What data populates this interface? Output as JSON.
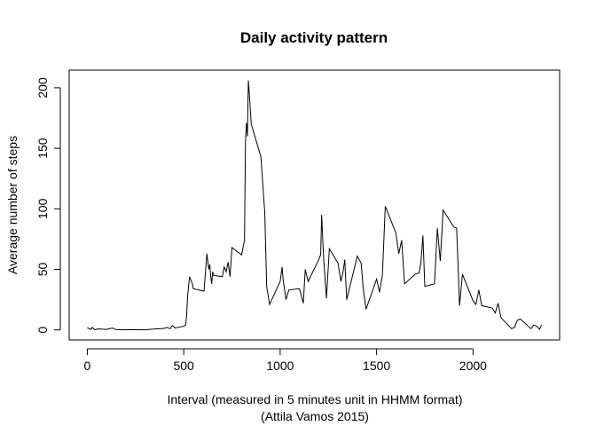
{
  "chart_data": {
    "type": "line",
    "title": "Daily activity pattern",
    "xlabel": "Interval (measured in 5 minutes unit in HHMM format)",
    "xlabel_sub": "(Attila Vamos 2015)",
    "ylabel": "Average number of steps",
    "xlim": [
      -94,
      2449
    ],
    "ylim": [
      -8.3,
      214.6
    ],
    "x_ticks": [
      0,
      500,
      1000,
      1500,
      2000
    ],
    "y_ticks": [
      0,
      50,
      100,
      150,
      200
    ],
    "grid": false,
    "line_color": "#000000",
    "series": [
      {
        "x": [
          0,
          20,
          25,
          40,
          55,
          100,
          130,
          150,
          200,
          230,
          300,
          330,
          400,
          410,
          430,
          440,
          450,
          455,
          500,
          510,
          515,
          520,
          530,
          545,
          550,
          605,
          620,
          630,
          635,
          640,
          645,
          650,
          655,
          700,
          710,
          720,
          730,
          740,
          750,
          800,
          810,
          815,
          820,
          825,
          830,
          835,
          840,
          850,
          900,
          910,
          915,
          920,
          930,
          945,
          1000,
          1010,
          1015,
          1030,
          1045,
          1100,
          1120,
          1130,
          1145,
          1200,
          1210,
          1215,
          1225,
          1240,
          1255,
          1300,
          1315,
          1325,
          1335,
          1345,
          1400,
          1420,
          1430,
          1445,
          1500,
          1515,
          1530,
          1545,
          1600,
          1615,
          1630,
          1645,
          1700,
          1720,
          1730,
          1740,
          1750,
          1800,
          1815,
          1830,
          1845,
          1900,
          1915,
          1930,
          1945,
          2000,
          2015,
          2030,
          2045,
          2100,
          2115,
          2130,
          2145,
          2200,
          2215,
          2230,
          2245,
          2300,
          2315,
          2330,
          2345,
          2355
        ],
        "values": [
          1.7,
          0.3,
          2.0,
          0.1,
          0.8,
          0.4,
          1.5,
          0.2,
          0.0,
          0.2,
          0.0,
          0.5,
          1.2,
          2.0,
          1.0,
          3.5,
          2.5,
          1.5,
          3.0,
          4.0,
          12.0,
          28.0,
          44.0,
          38.0,
          34.0,
          32.0,
          63.0,
          50.0,
          54.0,
          44.0,
          38.0,
          48.0,
          45.0,
          44.0,
          52.0,
          48.0,
          56.0,
          44.0,
          68.0,
          62.0,
          70.0,
          74.0,
          155.0,
          171.0,
          160.0,
          206.0,
          195.0,
          170.0,
          143.0,
          120.0,
          108.0,
          98.0,
          36.0,
          21.0,
          40.0,
          52.0,
          42.0,
          25.0,
          33.0,
          34.0,
          22.0,
          50.0,
          40.0,
          58.0,
          62.0,
          95.0,
          60.0,
          26.0,
          67.0,
          55.0,
          40.0,
          47.0,
          58.0,
          25.0,
          61.0,
          55.0,
          35.0,
          17.0,
          42.0,
          31.0,
          45.0,
          102.0,
          80.0,
          63.0,
          74.0,
          38.0,
          46.0,
          47.0,
          56.0,
          78.0,
          36.0,
          38.0,
          84.0,
          57.0,
          99.0,
          85.0,
          84.0,
          20.0,
          46.0,
          24.0,
          21.0,
          33.0,
          20.0,
          18.0,
          14.0,
          22.0,
          10.0,
          1.0,
          2.0,
          8.0,
          9.0,
          1.0,
          4.0,
          3.0,
          0.5,
          4.0
        ]
      }
    ]
  }
}
